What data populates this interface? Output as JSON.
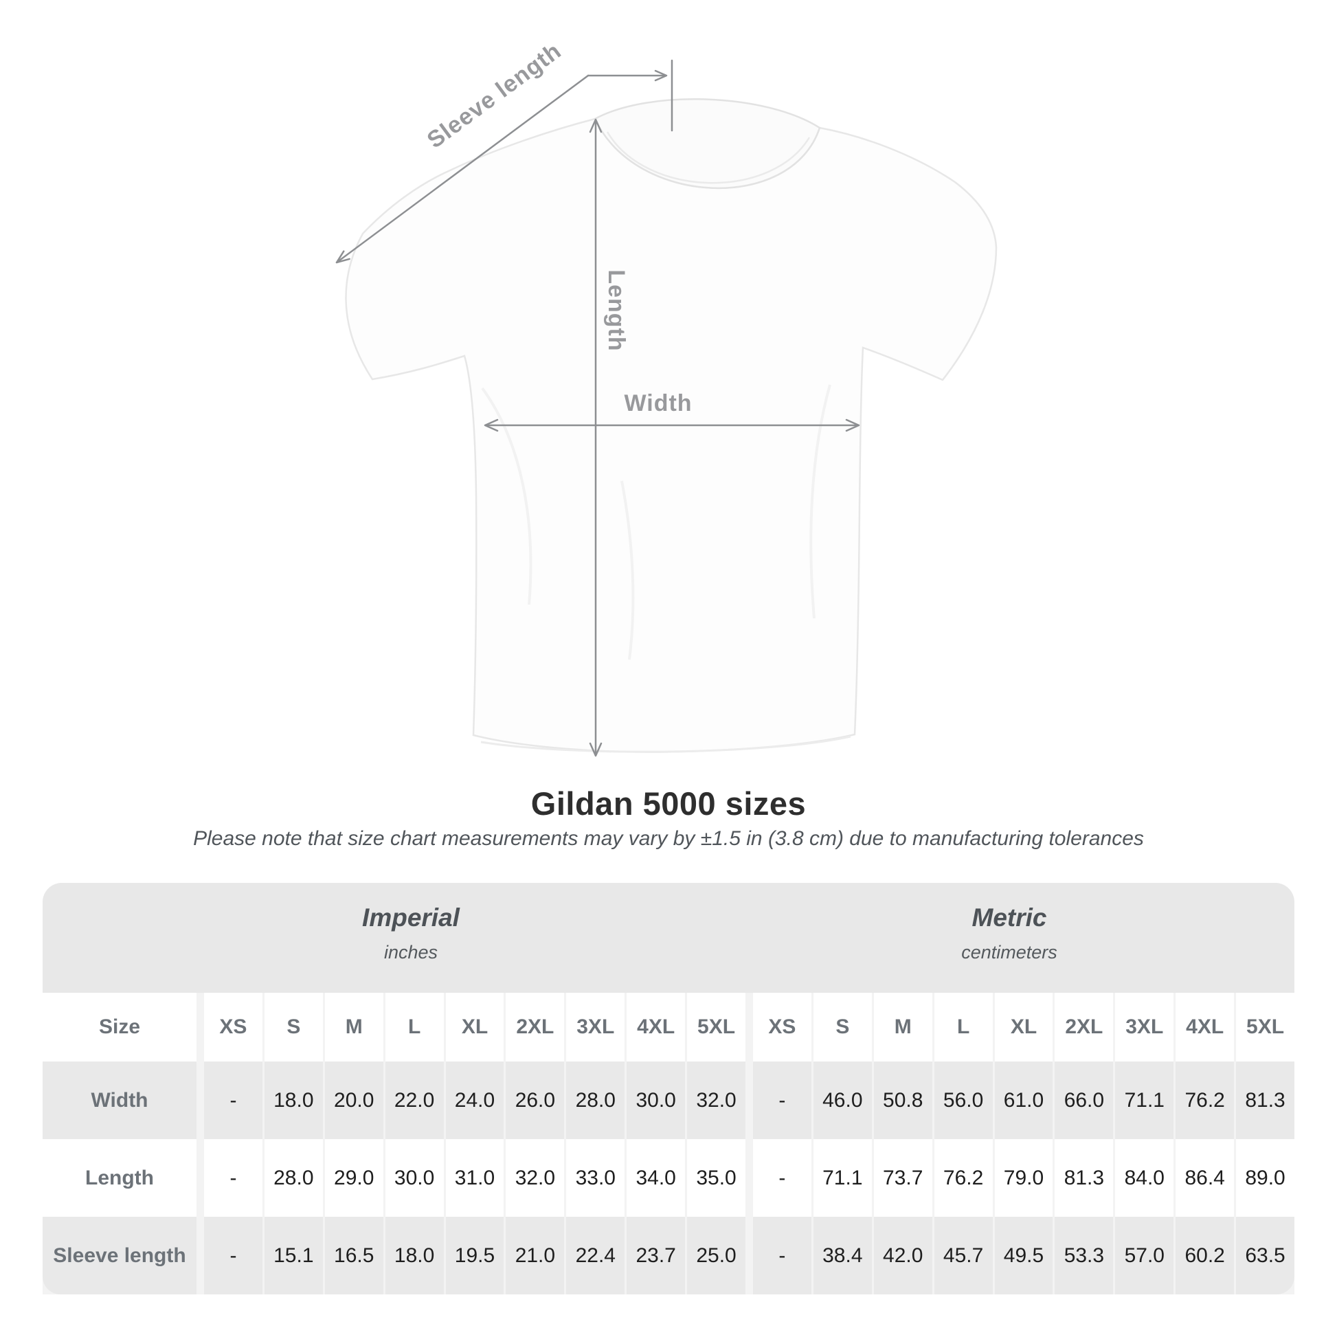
{
  "page": {
    "title": "Gildan 5000 sizes",
    "subtitle": "Please note that size chart measurements may vary by ±1.5 in (3.8 cm) due to manufacturing tolerances"
  },
  "diagram": {
    "sleeve_label": "Sleeve length",
    "length_label": "Length",
    "width_label": "Width"
  },
  "table": {
    "size_column_header": "Size",
    "sections": [
      {
        "name": "Imperial",
        "unit": "inches"
      },
      {
        "name": "Metric",
        "unit": "centimeters"
      }
    ],
    "sizes": [
      "XS",
      "S",
      "M",
      "L",
      "XL",
      "2XL",
      "3XL",
      "4XL",
      "5XL"
    ],
    "rows": [
      {
        "label": "Width",
        "imperial": [
          "-",
          "18.0",
          "20.0",
          "22.0",
          "24.0",
          "26.0",
          "28.0",
          "30.0",
          "32.0"
        ],
        "metric": [
          "-",
          "46.0",
          "50.8",
          "56.0",
          "61.0",
          "66.0",
          "71.1",
          "76.2",
          "81.3"
        ]
      },
      {
        "label": "Length",
        "imperial": [
          "-",
          "28.0",
          "29.0",
          "30.0",
          "31.0",
          "32.0",
          "33.0",
          "34.0",
          "35.0"
        ],
        "metric": [
          "-",
          "71.1",
          "73.7",
          "76.2",
          "79.0",
          "81.3",
          "84.0",
          "86.4",
          "89.0"
        ]
      },
      {
        "label": "Sleeve length",
        "imperial": [
          "-",
          "15.1",
          "16.5",
          "18.0",
          "19.5",
          "21.0",
          "22.4",
          "23.7",
          "25.0"
        ],
        "metric": [
          "-",
          "38.4",
          "42.0",
          "45.7",
          "49.5",
          "53.3",
          "57.0",
          "60.2",
          "63.5"
        ]
      }
    ]
  },
  "colors": {
    "band_gray": "#e8e8e8",
    "row_gray": "#e9e9e9",
    "separator": "#f3f3f3",
    "measure_line": "#8d8f92",
    "measure_label": "#98999c",
    "title_text": "#2e2e2e",
    "subtitle_text": "#50555a",
    "table_label_text": "#6c7278",
    "value_text": "#1e1e1e"
  }
}
